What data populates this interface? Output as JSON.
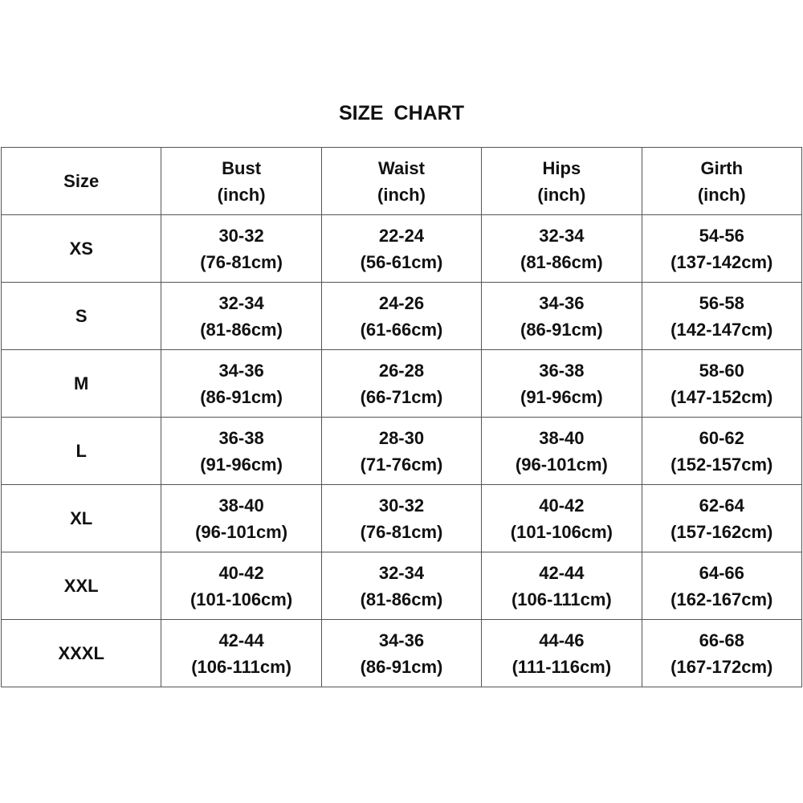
{
  "title": "SIZE  CHART",
  "headers": [
    {
      "label": "Size",
      "unit": ""
    },
    {
      "label": "Bust",
      "unit": "(inch)"
    },
    {
      "label": "Waist",
      "unit": "(inch)"
    },
    {
      "label": "Hips",
      "unit": "(inch)"
    },
    {
      "label": "Girth",
      "unit": "(inch)"
    }
  ],
  "rows": [
    {
      "size": "XS",
      "cells": [
        [
          "30-32",
          "(76-81cm)"
        ],
        [
          "22-24",
          "(56-61cm)"
        ],
        [
          "32-34",
          "(81-86cm)"
        ],
        [
          "54-56",
          "(137-142cm)"
        ]
      ]
    },
    {
      "size": "S",
      "cells": [
        [
          "32-34",
          "(81-86cm)"
        ],
        [
          "24-26",
          "(61-66cm)"
        ],
        [
          "34-36",
          "(86-91cm)"
        ],
        [
          "56-58",
          "(142-147cm)"
        ]
      ]
    },
    {
      "size": "M",
      "cells": [
        [
          "34-36",
          "(86-91cm)"
        ],
        [
          "26-28",
          "(66-71cm)"
        ],
        [
          "36-38",
          "(91-96cm)"
        ],
        [
          "58-60",
          "(147-152cm)"
        ]
      ]
    },
    {
      "size": "L",
      "cells": [
        [
          "36-38",
          "(91-96cm)"
        ],
        [
          "28-30",
          "(71-76cm)"
        ],
        [
          "38-40",
          "(96-101cm)"
        ],
        [
          "60-62",
          "(152-157cm)"
        ]
      ]
    },
    {
      "size": "XL",
      "cells": [
        [
          "38-40",
          "(96-101cm)"
        ],
        [
          "30-32",
          "(76-81cm)"
        ],
        [
          "40-42",
          "(101-106cm)"
        ],
        [
          "62-64",
          "(157-162cm)"
        ]
      ]
    },
    {
      "size": "XXL",
      "cells": [
        [
          "40-42",
          "(101-106cm)"
        ],
        [
          "32-34",
          "(81-86cm)"
        ],
        [
          "42-44",
          "(106-111cm)"
        ],
        [
          "64-66",
          "(162-167cm)"
        ]
      ]
    },
    {
      "size": "XXXL",
      "cells": [
        [
          "42-44",
          "(106-111cm)"
        ],
        [
          "34-36",
          "(86-91cm)"
        ],
        [
          "44-46",
          "(111-116cm)"
        ],
        [
          "66-68",
          "(167-172cm)"
        ]
      ]
    }
  ]
}
